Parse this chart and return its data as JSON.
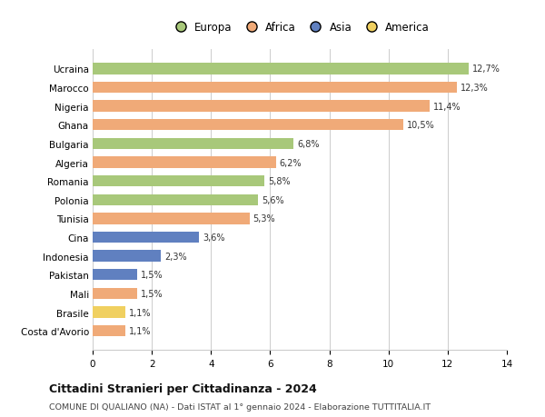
{
  "countries": [
    "Ucraina",
    "Marocco",
    "Nigeria",
    "Ghana",
    "Bulgaria",
    "Algeria",
    "Romania",
    "Polonia",
    "Tunisia",
    "Cina",
    "Indonesia",
    "Pakistan",
    "Mali",
    "Brasile",
    "Costa d'Avorio"
  ],
  "values": [
    12.7,
    12.3,
    11.4,
    10.5,
    6.8,
    6.2,
    5.8,
    5.6,
    5.3,
    3.6,
    2.3,
    1.5,
    1.5,
    1.1,
    1.1
  ],
  "labels": [
    "12,7%",
    "12,3%",
    "11,4%",
    "10,5%",
    "6,8%",
    "6,2%",
    "5,8%",
    "5,6%",
    "5,3%",
    "3,6%",
    "2,3%",
    "1,5%",
    "1,5%",
    "1,1%",
    "1,1%"
  ],
  "continents": [
    "Europa",
    "Africa",
    "Africa",
    "Africa",
    "Europa",
    "Africa",
    "Europa",
    "Europa",
    "Africa",
    "Asia",
    "Asia",
    "Asia",
    "Africa",
    "America",
    "Africa"
  ],
  "colors": {
    "Europa": "#a8c87a",
    "Africa": "#f0aa78",
    "Asia": "#6080c0",
    "America": "#f0d060"
  },
  "legend_order": [
    "Europa",
    "Africa",
    "Asia",
    "America"
  ],
  "title": "Cittadini Stranieri per Cittadinanza - 2024",
  "subtitle": "COMUNE DI QUALIANO (NA) - Dati ISTAT al 1° gennaio 2024 - Elaborazione TUTTITALIA.IT",
  "xlim": [
    0,
    14
  ],
  "xticks": [
    0,
    2,
    4,
    6,
    8,
    10,
    12,
    14
  ],
  "background_color": "#ffffff",
  "bar_height": 0.6,
  "grid_color": "#cccccc"
}
